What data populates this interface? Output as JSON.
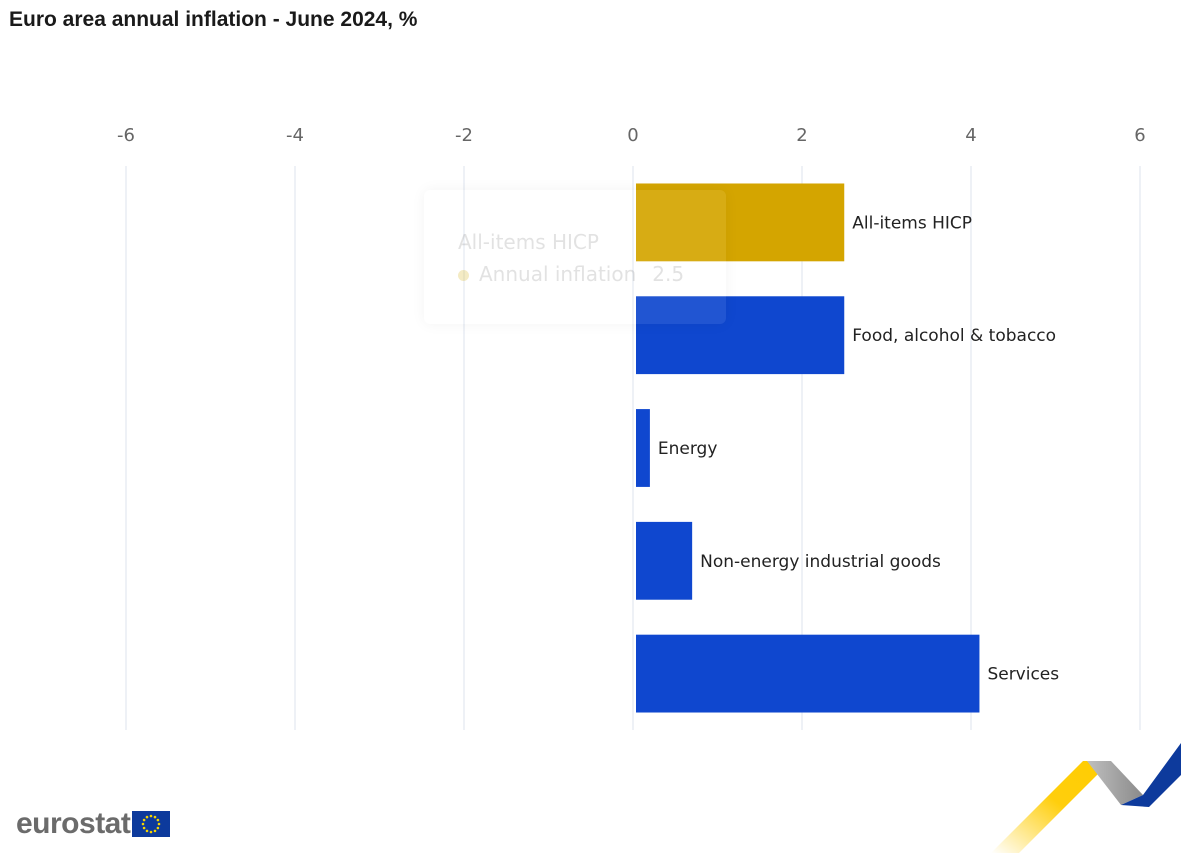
{
  "title": "Euro area annual inflation - June 2024, %",
  "chart_data": {
    "type": "bar",
    "orientation": "horizontal",
    "title": "Euro area annual inflation - June 2024, %",
    "xlabel": "",
    "ylabel": "",
    "xlim": [
      -6,
      6
    ],
    "x_ticks": [
      -6,
      -4,
      -2,
      0,
      2,
      4,
      6
    ],
    "grid": true,
    "categories": [
      "All-items HICP",
      "Food, alcohol & tobacco",
      "Energy",
      "Non-energy industrial goods",
      "Services"
    ],
    "values": [
      2.5,
      2.5,
      0.2,
      0.7,
      4.1
    ],
    "colors": [
      "#d4a500",
      "#0f47cf",
      "#0f47cf",
      "#0f47cf",
      "#0f47cf"
    ]
  },
  "tooltip": {
    "title": "All-items HICP",
    "series_name": "Annual inflation",
    "value": "2.5"
  },
  "logo": {
    "text": "eurostat"
  },
  "colors": {
    "highlight": "#d4a500",
    "bar": "#0f47cf",
    "grid": "#dde3ee",
    "tick_text": "#666666"
  }
}
